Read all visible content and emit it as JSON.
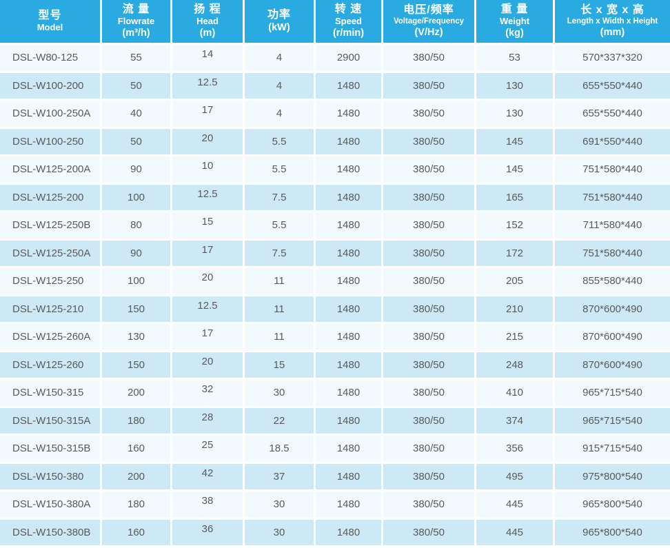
{
  "colors": {
    "header_bg": "#29abe2",
    "row_light": "#f2fafd",
    "row_dark": "#cde9f6",
    "cell_text": "#58595b",
    "header_text": "#ffffff",
    "gap": "#ffffff"
  },
  "table": {
    "columns": [
      {
        "key": "model",
        "zh": "型号",
        "en": "Model",
        "unit": ""
      },
      {
        "key": "flowrate",
        "zh": "流 量",
        "en": "Flowrate",
        "unit": "(m³/h)"
      },
      {
        "key": "head",
        "zh": "扬 程",
        "en": "Head",
        "unit": "(m)"
      },
      {
        "key": "power",
        "zh": "功率",
        "en": "",
        "unit": "(kW)"
      },
      {
        "key": "speed",
        "zh": "转 速",
        "en": "Speed",
        "unit": "(r/min)"
      },
      {
        "key": "voltage-frequency",
        "zh": "电压/频率",
        "en": "Voltage/Frequency",
        "unit": "(V/Hz)"
      },
      {
        "key": "weight",
        "zh": "重 量",
        "en": "Weight",
        "unit": "(kg)"
      },
      {
        "key": "dimensions",
        "zh": "长 x 宽 x 高",
        "en": "Length x Width x Height",
        "unit": "(mm)"
      }
    ],
    "rows": [
      [
        "DSL-W80-125",
        "55",
        "14",
        "4",
        "2900",
        "380/50",
        "53",
        "570*337*320"
      ],
      [
        "DSL-W100-200",
        "50",
        "12.5",
        "4",
        "1480",
        "380/50",
        "130",
        "655*550*440"
      ],
      [
        "DSL-W100-250A",
        "40",
        "17",
        "4",
        "1480",
        "380/50",
        "130",
        "655*550*440"
      ],
      [
        "DSL-W100-250",
        "50",
        "20",
        "5.5",
        "1480",
        "380/50",
        "145",
        "691*550*440"
      ],
      [
        "DSL-W125-200A",
        "90",
        "10",
        "5.5",
        "1480",
        "380/50",
        "145",
        "751*580*440"
      ],
      [
        "DSL-W125-200",
        "100",
        "12.5",
        "7.5",
        "1480",
        "380/50",
        "165",
        "751*580*440"
      ],
      [
        "DSL-W125-250B",
        "80",
        "15",
        "5.5",
        "1480",
        "380/50",
        "152",
        "711*580*440"
      ],
      [
        "DSL-W125-250A",
        "90",
        "17",
        "7.5",
        "1480",
        "380/50",
        "172",
        "751*580*440"
      ],
      [
        "DSL-W125-250",
        "100",
        "20",
        "11",
        "1480",
        "380/50",
        "205",
        "855*580*440"
      ],
      [
        "DSL-W125-210",
        "150",
        "12.5",
        "11",
        "1480",
        "380/50",
        "210",
        "870*600*490"
      ],
      [
        "DSL-W125-260A",
        "130",
        "17",
        "11",
        "1480",
        "380/50",
        "215",
        "870*600*490"
      ],
      [
        "DSL-W125-260",
        "150",
        "20",
        "15",
        "1480",
        "380/50",
        "248",
        "870*600*490"
      ],
      [
        "DSL-W150-315",
        "200",
        "32",
        "30",
        "1480",
        "380/50",
        "410",
        "965*715*540"
      ],
      [
        "DSL-W150-315A",
        "180",
        "28",
        "22",
        "1480",
        "380/50",
        "374",
        "965*715*540"
      ],
      [
        "DSL-W150-315B",
        "160",
        "25",
        "18.5",
        "1480",
        "380/50",
        "356",
        "915*715*540"
      ],
      [
        "DSL-W150-380",
        "200",
        "42",
        "37",
        "1480",
        "380/50",
        "495",
        "975*800*540"
      ],
      [
        "DSL-W150-380A",
        "180",
        "38",
        "30",
        "1480",
        "380/50",
        "445",
        "965*800*540"
      ],
      [
        "DSL-W150-380B",
        "160",
        "36",
        "30",
        "1480",
        "380/50",
        "445",
        "965*800*540"
      ]
    ]
  }
}
